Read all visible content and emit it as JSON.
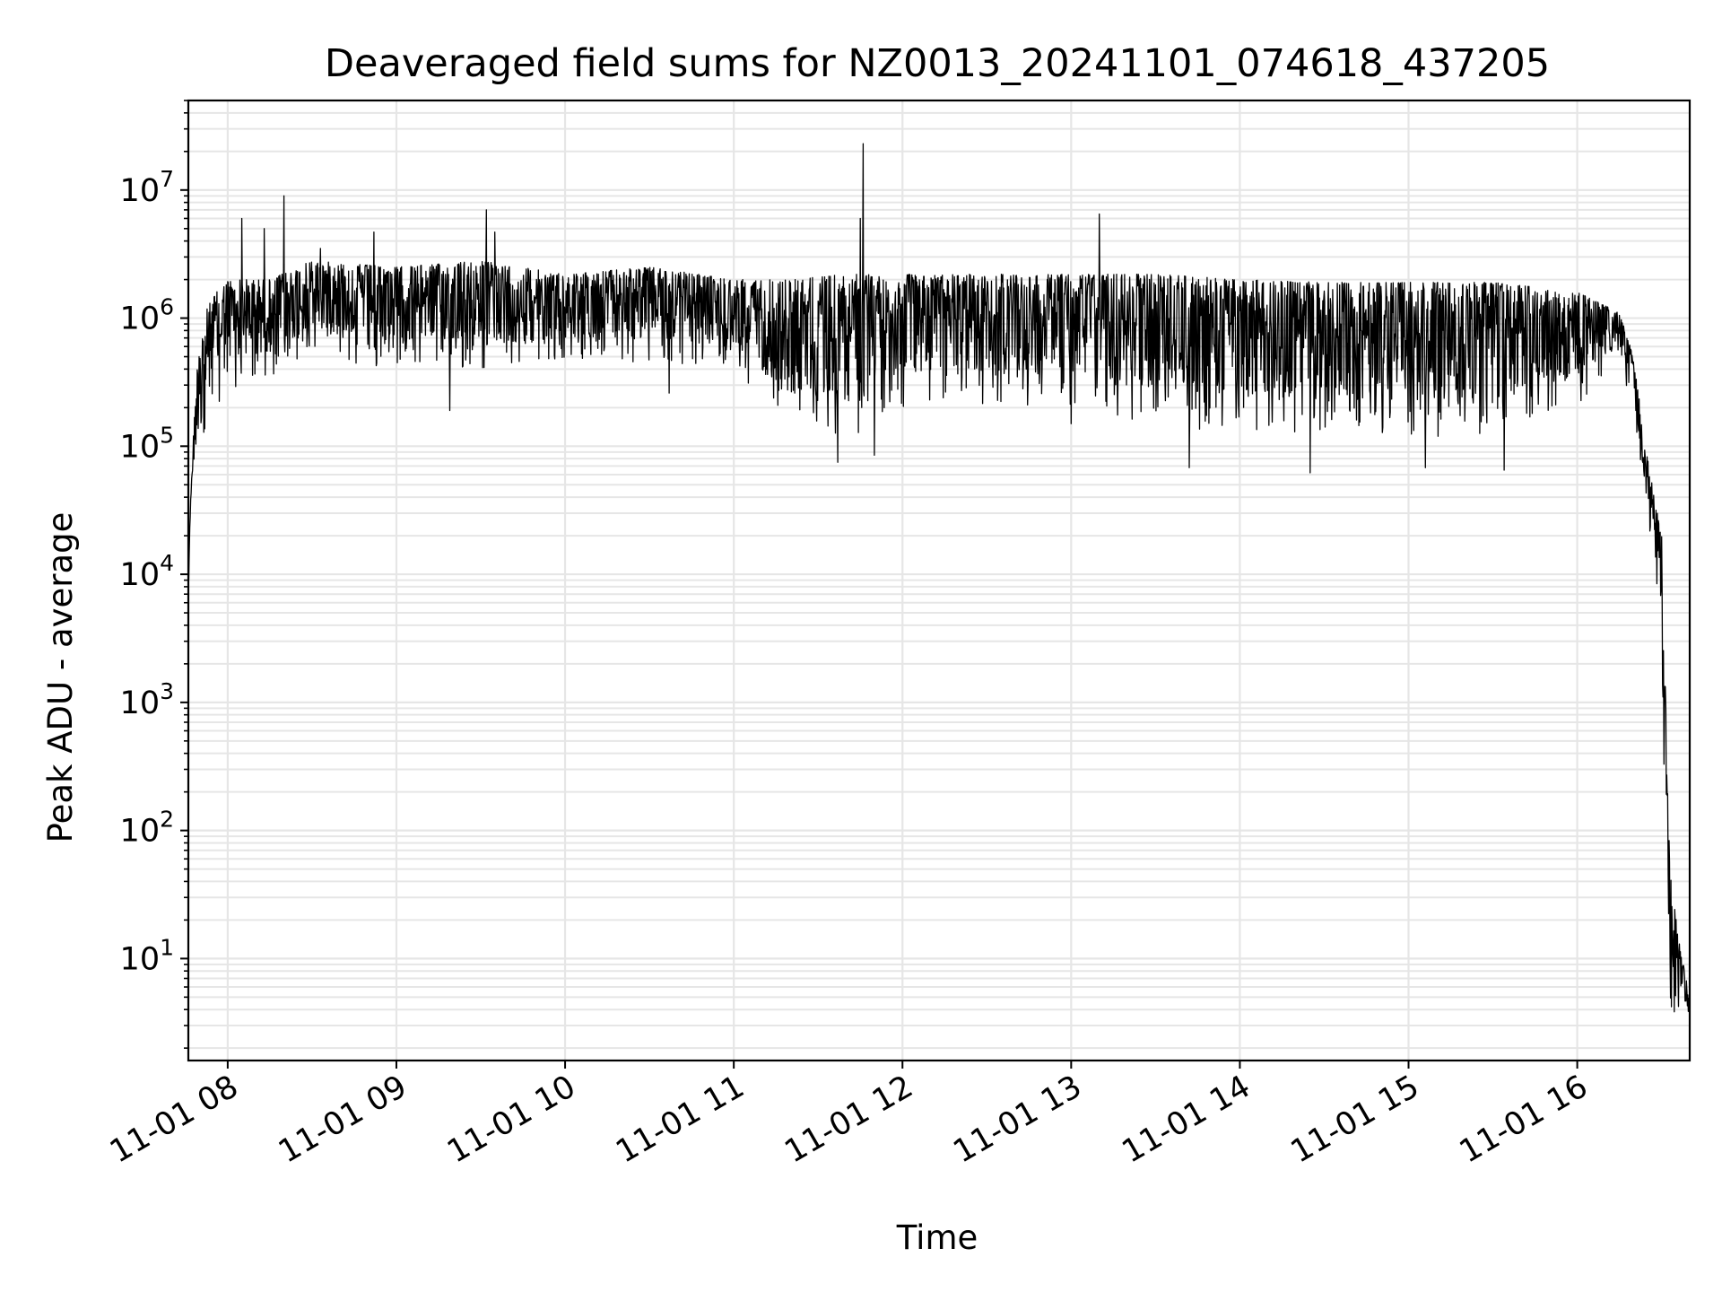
{
  "chart_data": {
    "type": "line",
    "title": "Deaveraged field sums for NZ0013_20241101_074618_437205",
    "xlabel": "Time",
    "ylabel": "Peak ADU - average",
    "yscale": "log",
    "ylim": [
      1.6,
      50000000
    ],
    "xlim": [
      "2024-11-01 07:46",
      "2024-11-01 16:40"
    ],
    "x_ticks": [
      "11-01 08",
      "11-01 09",
      "11-01 10",
      "11-01 11",
      "11-01 12",
      "11-01 13",
      "11-01 14",
      "11-01 15",
      "11-01 16"
    ],
    "y_ticks": [
      {
        "base": "10",
        "exp": "1",
        "value": 10
      },
      {
        "base": "10",
        "exp": "2",
        "value": 100
      },
      {
        "base": "10",
        "exp": "3",
        "value": 1000
      },
      {
        "base": "10",
        "exp": "4",
        "value": 10000
      },
      {
        "base": "10",
        "exp": "5",
        "value": 100000
      },
      {
        "base": "10",
        "exp": "6",
        "value": 1000000
      },
      {
        "base": "10",
        "exp": "7",
        "value": 10000000
      }
    ],
    "grid": true,
    "line_color": "#000000",
    "series": [
      {
        "envelope": [
          {
            "x": "2024-11-01 07:46",
            "lower": 6000,
            "upper": 9000
          },
          {
            "x": "2024-11-01 07:47",
            "lower": 40000,
            "upper": 60000
          },
          {
            "x": "2024-11-01 07:50",
            "lower": 90000,
            "upper": 900000
          },
          {
            "x": "2024-11-01 07:55",
            "lower": 150000,
            "upper": 1500000
          },
          {
            "x": "2024-11-01 08:00",
            "lower": 250000,
            "upper": 2000000
          },
          {
            "x": "2024-11-01 08:15",
            "lower": 350000,
            "upper": 2000000
          },
          {
            "x": "2024-11-01 08:30",
            "lower": 500000,
            "upper": 2800000
          },
          {
            "x": "2024-11-01 09:00",
            "lower": 400000,
            "upper": 2500000
          },
          {
            "x": "2024-11-01 09:30",
            "lower": 400000,
            "upper": 2800000
          },
          {
            "x": "2024-11-01 10:00",
            "lower": 450000,
            "upper": 2200000
          },
          {
            "x": "2024-11-01 10:30",
            "lower": 450000,
            "upper": 2500000
          },
          {
            "x": "2024-11-01 11:00",
            "lower": 400000,
            "upper": 2000000
          },
          {
            "x": "2024-11-01 11:20",
            "lower": 120000,
            "upper": 2000000
          },
          {
            "x": "2024-11-01 11:40",
            "lower": 110000,
            "upper": 2200000
          },
          {
            "x": "2024-11-01 12:00",
            "lower": 200000,
            "upper": 2200000
          },
          {
            "x": "2024-11-01 12:30",
            "lower": 200000,
            "upper": 2200000
          },
          {
            "x": "2024-11-01 13:00",
            "lower": 200000,
            "upper": 2200000
          },
          {
            "x": "2024-11-01 13:30",
            "lower": 150000,
            "upper": 2200000
          },
          {
            "x": "2024-11-01 14:00",
            "lower": 120000,
            "upper": 2000000
          },
          {
            "x": "2024-11-01 14:30",
            "lower": 110000,
            "upper": 1900000
          },
          {
            "x": "2024-11-01 15:00",
            "lower": 110000,
            "upper": 1900000
          },
          {
            "x": "2024-11-01 15:30",
            "lower": 110000,
            "upper": 1900000
          },
          {
            "x": "2024-11-01 16:00",
            "lower": 200000,
            "upper": 1600000
          },
          {
            "x": "2024-11-01 16:15",
            "lower": 500000,
            "upper": 1100000
          },
          {
            "x": "2024-11-01 16:20",
            "lower": 150000,
            "upper": 500000
          },
          {
            "x": "2024-11-01 16:25",
            "lower": 30000,
            "upper": 80000
          },
          {
            "x": "2024-11-01 16:30",
            "lower": 1500,
            "upper": 20000
          },
          {
            "x": "2024-11-01 16:33",
            "lower": 3.8,
            "upper": 50
          },
          {
            "x": "2024-11-01 16:40",
            "lower": 3.8,
            "upper": 4.5
          }
        ],
        "spikes": [
          {
            "x": "2024-11-01 07:54",
            "y": 900000
          },
          {
            "x": "2024-11-01 08:05",
            "y": 6000000
          },
          {
            "x": "2024-11-01 08:13",
            "y": 5000000
          },
          {
            "x": "2024-11-01 08:20",
            "y": 9000000
          },
          {
            "x": "2024-11-01 08:33",
            "y": 3500000
          },
          {
            "x": "2024-11-01 08:52",
            "y": 4700000
          },
          {
            "x": "2024-11-01 09:32",
            "y": 7000000
          },
          {
            "x": "2024-11-01 09:35",
            "y": 4700000
          },
          {
            "x": "2024-11-01 11:46",
            "y": 23000000
          },
          {
            "x": "2024-11-01 11:45",
            "y": 6000000
          },
          {
            "x": "2024-11-01 13:10",
            "y": 6500000
          }
        ],
        "dips": [
          {
            "x": "2024-11-01 09:19",
            "y": 190000
          },
          {
            "x": "2024-11-01 10:37",
            "y": 260000
          },
          {
            "x": "2024-11-01 11:37",
            "y": 75000
          },
          {
            "x": "2024-11-01 11:50",
            "y": 85000
          },
          {
            "x": "2024-11-01 13:00",
            "y": 150000
          },
          {
            "x": "2024-11-01 13:42",
            "y": 68000
          },
          {
            "x": "2024-11-01 14:25",
            "y": 62000
          },
          {
            "x": "2024-11-01 15:06",
            "y": 68000
          },
          {
            "x": "2024-11-01 15:34",
            "y": 65000
          }
        ]
      }
    ]
  }
}
